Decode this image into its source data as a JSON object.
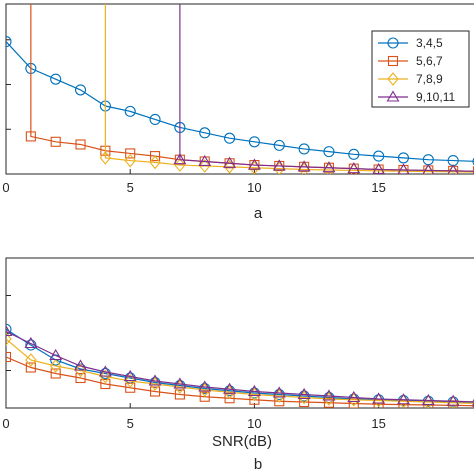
{
  "chart_data": [
    {
      "type": "line",
      "panel_label": "a",
      "xlabel": "",
      "ylabel": "",
      "xlim": [
        0,
        19
      ],
      "ylim": [
        0,
        1.9
      ],
      "x_ticks": [
        0,
        5,
        10,
        15
      ],
      "x_tick_labels": [
        "0",
        "5",
        "10",
        "15"
      ],
      "y_ticks": [
        0.5,
        1.0,
        1.5
      ],
      "grid": false,
      "legend": {
        "position": "top-right",
        "entries": [
          "3,4,5",
          "5,6,7",
          "7,8,9",
          "9,10,11"
        ]
      },
      "series": [
        {
          "name": "3,4,5",
          "color": "#0072BD",
          "marker": "circle",
          "x": [
            0,
            1,
            2,
            3,
            4,
            5,
            6,
            7,
            8,
            9,
            10,
            11,
            12,
            13,
            14,
            15,
            16,
            17,
            18,
            19
          ],
          "y": [
            1.48,
            1.18,
            1.06,
            0.94,
            0.76,
            0.7,
            0.61,
            0.52,
            0.46,
            0.4,
            0.36,
            0.32,
            0.28,
            0.25,
            0.22,
            0.2,
            0.18,
            0.16,
            0.15,
            0.14
          ]
        },
        {
          "name": "5,6,7",
          "color": "#D95319",
          "marker": "square",
          "x": [
            1,
            1,
            2,
            3,
            4,
            5,
            6,
            7,
            8,
            9,
            10,
            11,
            12,
            13,
            14,
            15,
            16,
            17,
            18,
            19
          ],
          "y": [
            1.9,
            0.42,
            0.36,
            0.33,
            0.26,
            0.23,
            0.2,
            0.16,
            0.14,
            0.12,
            0.1,
            0.09,
            0.08,
            0.07,
            0.06,
            0.05,
            0.045,
            0.04,
            0.035,
            0.03
          ]
        },
        {
          "name": "7,8,9",
          "color": "#EDB120",
          "marker": "diamond",
          "x": [
            4,
            4,
            5,
            6,
            7,
            8,
            9,
            10,
            11,
            12,
            13,
            14,
            15,
            16,
            17,
            18,
            19
          ],
          "y": [
            1.9,
            0.18,
            0.15,
            0.13,
            0.1,
            0.09,
            0.08,
            0.07,
            0.06,
            0.05,
            0.045,
            0.04,
            0.035,
            0.03,
            0.028,
            0.025,
            0.02
          ]
        },
        {
          "name": "9,10,11",
          "color": "#7E2F8E",
          "marker": "triangle",
          "x": [
            7,
            7,
            8,
            9,
            10,
            11,
            12,
            13,
            14,
            15,
            16,
            17,
            18,
            19
          ],
          "y": [
            1.9,
            0.16,
            0.14,
            0.12,
            0.1,
            0.09,
            0.08,
            0.07,
            0.06,
            0.05,
            0.045,
            0.04,
            0.035,
            0.03
          ]
        }
      ]
    },
    {
      "type": "line",
      "panel_label": "b",
      "xlabel": "SNR(dB)",
      "ylabel": "",
      "xlim": [
        0,
        19
      ],
      "ylim": [
        0,
        2.0
      ],
      "x_ticks": [
        0,
        5,
        10,
        15
      ],
      "x_tick_labels": [
        "0",
        "5",
        "10",
        "15"
      ],
      "y_ticks": [
        0.5,
        1.0,
        1.5
      ],
      "grid": false,
      "legend": null,
      "series": [
        {
          "name": "3,4,5",
          "color": "#0072BD",
          "marker": "circle",
          "x": [
            0,
            1,
            2,
            3,
            4,
            5,
            6,
            7,
            8,
            9,
            10,
            11,
            12,
            13,
            14,
            15,
            16,
            17,
            18,
            19
          ],
          "y": [
            1.05,
            0.84,
            0.64,
            0.52,
            0.46,
            0.4,
            0.34,
            0.3,
            0.26,
            0.23,
            0.2,
            0.18,
            0.16,
            0.14,
            0.12,
            0.11,
            0.1,
            0.09,
            0.08,
            0.07
          ]
        },
        {
          "name": "5,6,7",
          "color": "#D95319",
          "marker": "square",
          "x": [
            0,
            1,
            2,
            3,
            4,
            5,
            6,
            7,
            8,
            9,
            10,
            11,
            12,
            13,
            14,
            15,
            16,
            17,
            18,
            19
          ],
          "y": [
            0.68,
            0.54,
            0.46,
            0.4,
            0.32,
            0.27,
            0.22,
            0.18,
            0.15,
            0.13,
            0.11,
            0.09,
            0.08,
            0.07,
            0.06,
            0.05,
            0.045,
            0.04,
            0.035,
            0.03
          ]
        },
        {
          "name": "7,8,9",
          "color": "#EDB120",
          "marker": "diamond",
          "x": [
            0,
            1,
            2,
            3,
            4,
            5,
            6,
            7,
            8,
            9,
            10,
            11,
            12,
            13,
            14,
            15,
            16,
            17,
            18,
            19
          ],
          "y": [
            0.92,
            0.64,
            0.56,
            0.5,
            0.42,
            0.36,
            0.32,
            0.28,
            0.24,
            0.21,
            0.18,
            0.16,
            0.14,
            0.12,
            0.11,
            0.1,
            0.09,
            0.08,
            0.07,
            0.06
          ]
        },
        {
          "name": "9,10,11",
          "color": "#7E2F8E",
          "marker": "triangle",
          "x": [
            0,
            1,
            2,
            3,
            4,
            5,
            6,
            7,
            8,
            9,
            10,
            11,
            12,
            13,
            14,
            15,
            16,
            17,
            18,
            19
          ],
          "y": [
            1.02,
            0.86,
            0.7,
            0.56,
            0.48,
            0.42,
            0.36,
            0.32,
            0.28,
            0.25,
            0.22,
            0.2,
            0.18,
            0.16,
            0.14,
            0.12,
            0.11,
            0.1,
            0.09,
            0.08
          ]
        }
      ]
    }
  ]
}
